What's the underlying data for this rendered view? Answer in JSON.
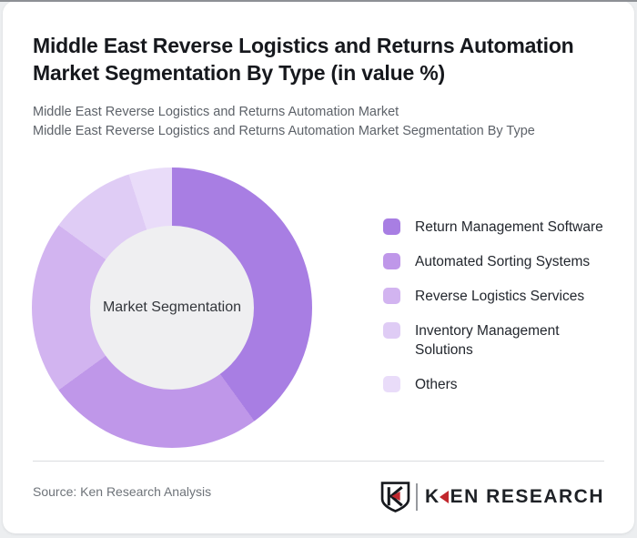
{
  "page": {
    "background_color": "#eceef0",
    "card_background_color": "#ffffff"
  },
  "header": {
    "title_lines": [
      "Middle East Reverse Logistics and Returns Automation",
      "Market Segmentation By Type (in value %)"
    ],
    "subtitle_lines": [
      "Middle East Reverse Logistics and Returns Automation Market",
      "Middle East Reverse Logistics and Returns Automation Market Segmentation By Type"
    ]
  },
  "chart_data": {
    "type": "pie",
    "donut": true,
    "title": "Middle East Reverse Logistics and Returns Automation Market Segmentation By Type (in value %)",
    "center_label": "Market Segmentation",
    "categories": [
      "Return Management Software",
      "Automated Sorting Systems",
      "Reverse Logistics Services",
      "Inventory Management Solutions",
      "Others"
    ],
    "values": [
      40,
      25,
      20,
      10,
      5
    ],
    "unit": "value %",
    "colors": [
      "#a87ee3",
      "#bf97e9",
      "#d2b4f0",
      "#dfccf5",
      "#e9dcf9"
    ],
    "hole_color": "#efeff1",
    "start_angle_deg": 0,
    "direction": "clockwise",
    "legend_position": "right"
  },
  "footer": {
    "source": "Source: Ken Research Analysis",
    "logo": {
      "shield_letter": "K",
      "wordmark_first_letter": "K",
      "wordmark_rest": "EN RESEARCH",
      "accent_color": "#c1272d"
    }
  }
}
